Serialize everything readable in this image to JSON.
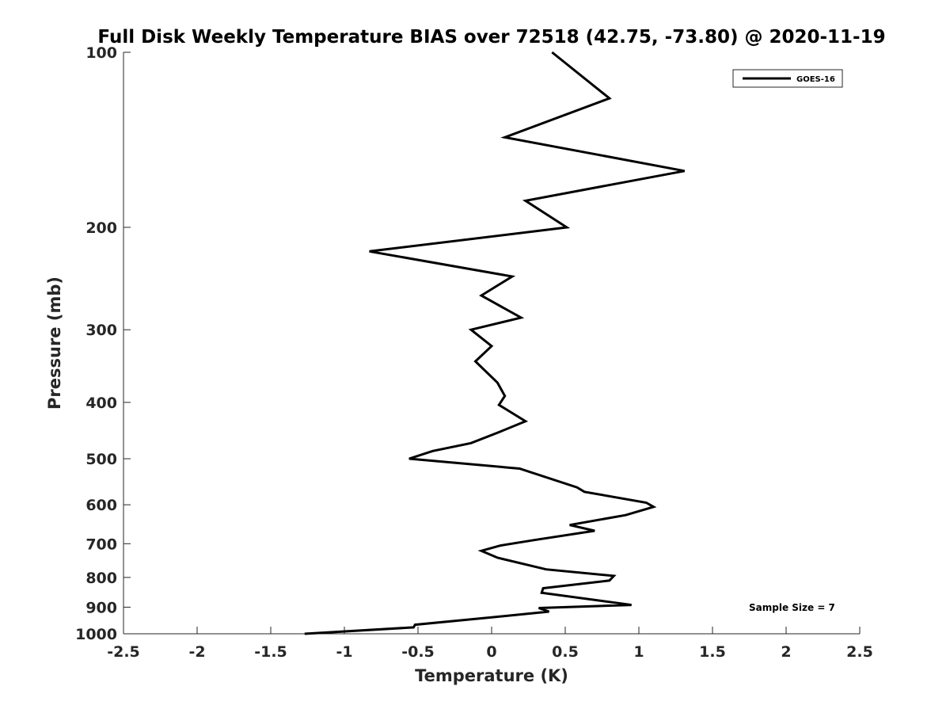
{
  "chart_data": {
    "type": "line",
    "title": "Full Disk Weekly Temperature BIAS over 72518 (42.75, -73.80) @ 2020-11-19",
    "xlabel": "Temperature (K)",
    "ylabel": "Pressure (mb)",
    "xlim": [
      -2.5,
      2.5
    ],
    "ylim": [
      100,
      1000
    ],
    "y_scale": "log",
    "y_reversed": true,
    "grid": false,
    "legend_position": "top-right",
    "x_ticks": [
      -2.5,
      -2,
      -1.5,
      -1,
      -0.5,
      0,
      0.5,
      1,
      1.5,
      2,
      2.5
    ],
    "x_tick_labels": [
      "-2.5",
      "-2",
      "-1.5",
      "-1",
      "-0.5",
      "0",
      "0.5",
      "1",
      "1.5",
      "2",
      "2.5"
    ],
    "y_ticks": [
      100,
      200,
      300,
      400,
      500,
      600,
      700,
      800,
      900,
      1000
    ],
    "y_tick_labels": [
      "100",
      "200",
      "300",
      "400",
      "500",
      "600",
      "700",
      "800",
      "900",
      "1000"
    ],
    "series": [
      {
        "name": "GOES-16",
        "color": "#000000",
        "points": [
          [
            0.41,
            100
          ],
          [
            0.8,
            120
          ],
          [
            0.09,
            140
          ],
          [
            1.31,
            160
          ],
          [
            0.23,
            180
          ],
          [
            0.51,
            200
          ],
          [
            -0.83,
            220
          ],
          [
            0.14,
            243
          ],
          [
            -0.07,
            262
          ],
          [
            0.2,
            286
          ],
          [
            -0.14,
            300
          ],
          [
            0.0,
            320
          ],
          [
            -0.11,
            340
          ],
          [
            0.04,
            370
          ],
          [
            0.09,
            390
          ],
          [
            0.05,
            404
          ],
          [
            0.23,
            431
          ],
          [
            0.05,
            450
          ],
          [
            -0.14,
            470
          ],
          [
            -0.4,
            485
          ],
          [
            -0.56,
            500
          ],
          [
            0.19,
            520
          ],
          [
            0.58,
            560
          ],
          [
            0.63,
            570
          ],
          [
            1.05,
            595
          ],
          [
            1.1,
            605
          ],
          [
            0.91,
            625
          ],
          [
            0.53,
            650
          ],
          [
            0.7,
            665
          ],
          [
            0.29,
            690
          ],
          [
            0.06,
            705
          ],
          [
            -0.07,
            720
          ],
          [
            0.04,
            740
          ],
          [
            0.37,
            775
          ],
          [
            0.83,
            795
          ],
          [
            0.8,
            810
          ],
          [
            0.35,
            835
          ],
          [
            0.34,
            850
          ],
          [
            0.95,
            892
          ],
          [
            0.32,
            903
          ],
          [
            0.39,
            916
          ],
          [
            0.0,
            937
          ],
          [
            -0.52,
            965
          ],
          [
            -0.53,
            975
          ],
          [
            -1.27,
            1000
          ]
        ]
      }
    ],
    "annotations": [
      "Sample Size = 7"
    ]
  }
}
